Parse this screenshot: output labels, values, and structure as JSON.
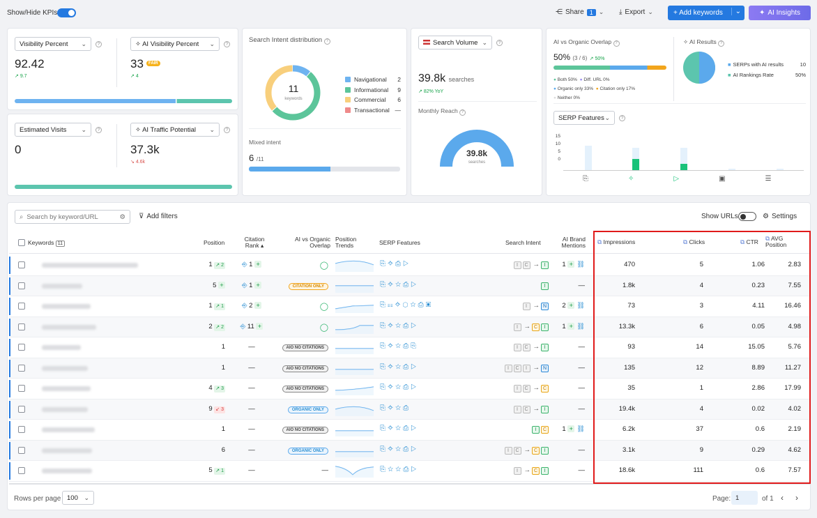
{
  "top": {
    "show_hide": "Show/Hide KPIs",
    "share": "Share",
    "share_count": "1",
    "export": "Export",
    "add_keywords": "+ Add keywords",
    "ai_insights": "AI Insights"
  },
  "kpi": {
    "visibility_sel": "Visibility Percent",
    "visibility_val": "92.42",
    "visibility_delta": "9.7",
    "ai_vis_sel": "AI Visibility Percent",
    "ai_vis_val": "33",
    "ai_vis_badge": "FAIR",
    "ai_vis_delta": "4",
    "est_sel": "Estimated Visits",
    "est_val": "0",
    "ai_traffic_sel": "AI Traffic Potential",
    "ai_traffic_val": "37.3k",
    "ai_traffic_delta": "4.6k"
  },
  "intent": {
    "title": "Search Intent distribution",
    "center": "11",
    "center_sub": "keywords",
    "items": [
      {
        "label": "Navigational",
        "value": "2",
        "color": "#6eb3f0"
      },
      {
        "label": "Informational",
        "value": "9",
        "color": "#5cc59a"
      },
      {
        "label": "Commercial",
        "value": "6",
        "color": "#f8cf7c"
      },
      {
        "label": "Transactional",
        "value": "—",
        "color": "#ef8a8a"
      }
    ],
    "mixed_label": "Mixed intent",
    "mixed_val": "6",
    "mixed_total": "/11"
  },
  "volume": {
    "sel": "Search Volume",
    "value": "39.8k",
    "unit": "searches",
    "yoy": "82% YoY",
    "reach_label": "Monthly Reach",
    "gauge_val": "39.8k",
    "gauge_unit": "searches"
  },
  "overlap": {
    "title": "AI vs Organic Overlap",
    "pct": "50%",
    "frac": "(3 / 6)",
    "delta": "50%",
    "legend": [
      "Both 50%",
      "Diff. URL 0%",
      "Organic only 33%",
      "Citation only 17%",
      "Neither 0%"
    ],
    "ai_results_title": "AI Results",
    "ai_legend": [
      {
        "label": "SERPs with AI results",
        "value": "10"
      },
      {
        "label": "AI Rankings Rate",
        "value": "50%"
      }
    ],
    "serp_sel": "SERP Features",
    "y_ticks": [
      "15",
      "10",
      "5",
      "0"
    ]
  },
  "toolbar": {
    "search_placeholder": "Search by keyword/URL",
    "add_filters": "Add filters",
    "show_urls": "Show URLs",
    "settings": "Settings"
  },
  "headers": {
    "keywords": "Keywords",
    "kw_count": "11",
    "position": "Position",
    "citation": "Citation Rank",
    "overlap": "AI vs Organic Overlap",
    "trends": "Position Trends",
    "serp": "SERP Features",
    "intent": "Search Intent",
    "brand": "AI Brand Mentions",
    "impressions": "Impressions",
    "clicks": "Clicks",
    "ctr": "CTR",
    "avgpos": "AVG Position"
  },
  "rows": [
    {
      "pos": "1",
      "pd": "2",
      "pdir": "up",
      "cite": "1",
      "ov": "check",
      "brand": "1",
      "imp": "470",
      "clk": "5",
      "ctr": "1.06",
      "avg": "2.83"
    },
    {
      "pos": "5",
      "pd": "",
      "pdir": "plus",
      "cite": "1",
      "ov": "CITATION ONLY",
      "brand": "—",
      "imp": "1.8k",
      "clk": "4",
      "ctr": "0.23",
      "avg": "7.55"
    },
    {
      "pos": "1",
      "pd": "1",
      "pdir": "up",
      "cite": "2",
      "ov": "check",
      "brand": "2",
      "imp": "73",
      "clk": "3",
      "ctr": "4.11",
      "avg": "16.46"
    },
    {
      "pos": "2",
      "pd": "2",
      "pdir": "up",
      "cite": "11",
      "ov": "check",
      "brand": "1",
      "imp": "13.3k",
      "clk": "6",
      "ctr": "0.05",
      "avg": "4.98"
    },
    {
      "pos": "1",
      "pd": "",
      "pdir": "",
      "cite": "—",
      "ov": "AIO NO CITATIONS",
      "brand": "—",
      "imp": "93",
      "clk": "14",
      "ctr": "15.05",
      "avg": "5.76"
    },
    {
      "pos": "1",
      "pd": "",
      "pdir": "",
      "cite": "—",
      "ov": "AIO NO CITATIONS",
      "brand": "—",
      "imp": "135",
      "clk": "12",
      "ctr": "8.89",
      "avg": "11.27"
    },
    {
      "pos": "4",
      "pd": "3",
      "pdir": "up",
      "cite": "—",
      "ov": "AIO NO CITATIONS",
      "brand": "—",
      "imp": "35",
      "clk": "1",
      "ctr": "2.86",
      "avg": "17.99"
    },
    {
      "pos": "9",
      "pd": "3",
      "pdir": "dn",
      "cite": "—",
      "ov": "ORGANIC ONLY",
      "brand": "—",
      "imp": "19.4k",
      "clk": "4",
      "ctr": "0.02",
      "avg": "4.02"
    },
    {
      "pos": "1",
      "pd": "",
      "pdir": "",
      "cite": "—",
      "ov": "AIO NO CITATIONS",
      "brand": "1",
      "imp": "6.2k",
      "clk": "37",
      "ctr": "0.6",
      "avg": "2.19"
    },
    {
      "pos": "6",
      "pd": "",
      "pdir": "",
      "cite": "—",
      "ov": "ORGANIC ONLY",
      "brand": "—",
      "imp": "3.1k",
      "clk": "9",
      "ctr": "0.29",
      "avg": "4.62"
    },
    {
      "pos": "5",
      "pd": "1",
      "pdir": "up",
      "cite": "—",
      "ov": "—",
      "brand": "—",
      "imp": "18.6k",
      "clk": "111",
      "ctr": "0.6",
      "avg": "7.57"
    }
  ],
  "footer": {
    "rows_label": "Rows per page",
    "rows_val": "100",
    "page_label": "Page:",
    "page_val": "1",
    "of": "of 1"
  }
}
